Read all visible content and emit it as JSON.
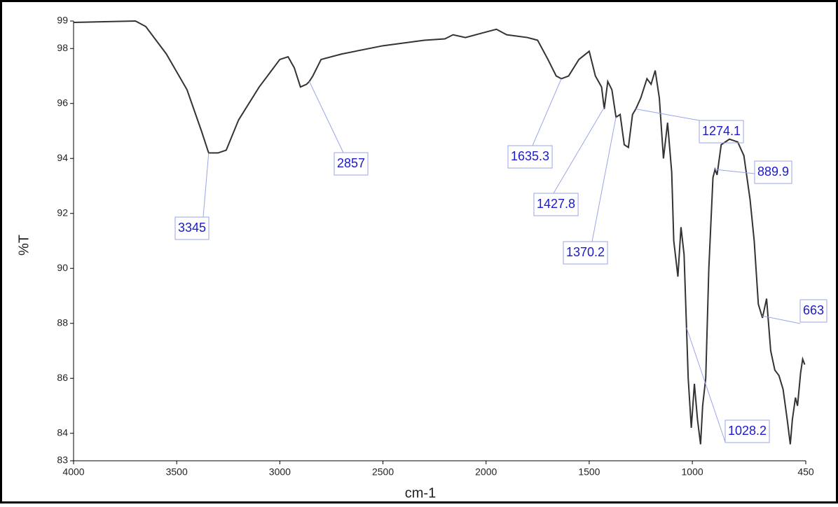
{
  "chart_data": {
    "type": "line",
    "x_label": "cm-1",
    "y_label": "%T",
    "xlim": [
      4000,
      450
    ],
    "ylim": [
      83,
      99
    ],
    "xticks": [
      4000,
      3500,
      3000,
      2500,
      2000,
      1500,
      1000,
      450
    ],
    "yticks": [
      83,
      84,
      86,
      88,
      90,
      92,
      94,
      96,
      98,
      99
    ],
    "series": [
      {
        "color": "#333333",
        "x": [
          4000,
          3700,
          3650,
          3550,
          3450,
          3380,
          3345,
          3300,
          3260,
          3200,
          3100,
          3000,
          2960,
          2930,
          2900,
          2870,
          2857,
          2840,
          2800,
          2700,
          2500,
          2300,
          2200,
          2160,
          2100,
          2000,
          1950,
          1900,
          1800,
          1750,
          1700,
          1660,
          1635,
          1600,
          1550,
          1500,
          1470,
          1440,
          1427,
          1410,
          1390,
          1370,
          1350,
          1330,
          1310,
          1290,
          1274,
          1250,
          1220,
          1200,
          1180,
          1160,
          1140,
          1120,
          1100,
          1090,
          1070,
          1055,
          1040,
          1020,
          1005,
          990,
          975,
          960,
          950,
          935,
          920,
          900,
          890,
          880,
          860,
          820,
          780,
          750,
          720,
          700,
          680,
          660,
          640,
          620,
          600,
          580,
          560,
          540,
          525,
          515,
          500,
          490,
          475,
          465,
          455
        ],
        "values": [
          98.95,
          99.0,
          98.8,
          97.8,
          96.5,
          95.0,
          94.2,
          94.2,
          94.3,
          95.4,
          96.6,
          97.6,
          97.7,
          97.3,
          96.6,
          96.7,
          96.8,
          97.0,
          97.6,
          97.8,
          98.1,
          98.3,
          98.35,
          98.5,
          98.4,
          98.6,
          98.7,
          98.5,
          98.4,
          98.3,
          97.6,
          97.0,
          96.9,
          97.0,
          97.6,
          97.9,
          97.0,
          96.6,
          95.8,
          96.8,
          96.5,
          95.5,
          95.6,
          94.5,
          94.4,
          95.6,
          95.8,
          96.2,
          96.9,
          96.7,
          97.2,
          96.2,
          94.0,
          95.3,
          93.5,
          91.0,
          89.7,
          91.5,
          90.5,
          86.0,
          84.2,
          85.8,
          84.5,
          83.6,
          85.0,
          86.0,
          90.0,
          93.3,
          93.6,
          93.4,
          94.5,
          94.7,
          94.6,
          94.1,
          92.5,
          91.0,
          88.7,
          88.2,
          88.9,
          87.0,
          86.3,
          86.1,
          85.6,
          84.5,
          83.6,
          84.5,
          85.3,
          85.0,
          86.2,
          86.7,
          86.5
        ]
      }
    ],
    "annotations": [
      {
        "x": 3345,
        "label": "3345"
      },
      {
        "x": 2857,
        "label": "2857"
      },
      {
        "x": 1635.3,
        "label": "1635.3"
      },
      {
        "x": 1427.8,
        "label": "1427.8"
      },
      {
        "x": 1370.2,
        "label": "1370.2"
      },
      {
        "x": 1274.1,
        "label": "1274.1"
      },
      {
        "x": 889.9,
        "label": "889.9"
      },
      {
        "x": 663,
        "label": "663"
      },
      {
        "x": 1028.2,
        "label": "1028.2"
      }
    ]
  }
}
